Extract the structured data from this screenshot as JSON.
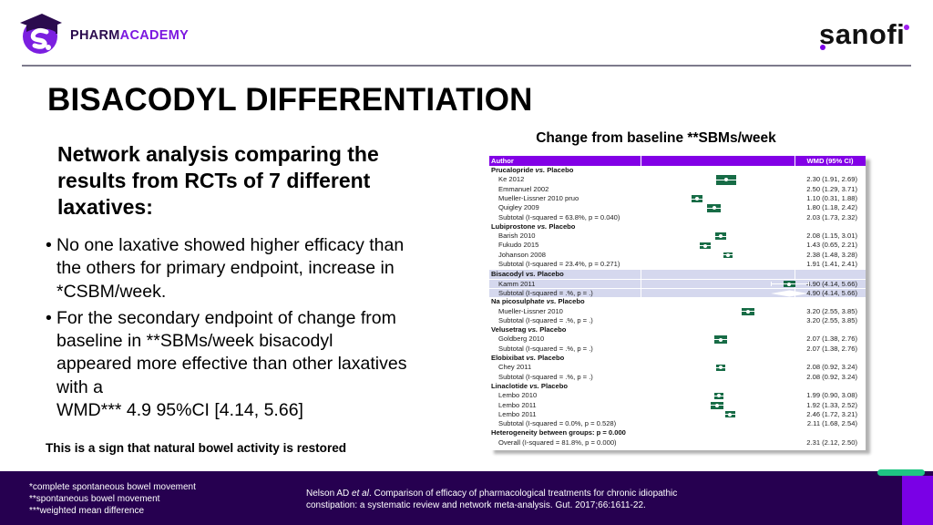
{
  "brand": {
    "logo_text_part1": "PHARM",
    "logo_text_part2": "ACADEMY",
    "logo_icon": "graduation-cap-s-icon",
    "partner_logo_text": "sanofi"
  },
  "slide": {
    "title": "BISACODYL DIFFERENTIATION",
    "intro_lines": [
      "Network analysis comparing the",
      "results from RCTs of 7 different",
      "laxatives:"
    ],
    "bullets": [
      {
        "lines": [
          "No one laxative showed higher efficacy than",
          "the others for primary endpoint, increase in",
          "*CSBM/week."
        ]
      },
      {
        "lines": [
          "For the secondary endpoint of change from",
          "baseline in **SBMs/week bisacodyl",
          "appeared more effective than other laxatives",
          "with a",
          "WMD*** 4.9 95%CI [4.14, 5.66]"
        ]
      }
    ],
    "bullet_glyph": "•",
    "conclusion": "This is a sign that natural bowel activity is restored"
  },
  "chart_title": "Change from baseline **SBMs/week",
  "footer": {
    "footnotes": [
      "*complete spontaneous bowel movement",
      "**spontaneous bowel movement",
      "***weighted mean difference"
    ],
    "citation": {
      "author": "Nelson AD ",
      "etal": "et al",
      "line1_rest": ". Comparison of efficacy of pharmacological treatments for chronic idiopathic",
      "line2": "constipation: a systematic review and network meta-analysis. Gut. 2017;66:1611-22."
    }
  },
  "colors": {
    "brand_purple": "#7a00e6",
    "dark_purple": "#260050",
    "accent_green": "#1fc583",
    "forest_header": "#8200e6",
    "marker_green": "#176c46",
    "highlight_row": "#d5d8ee"
  },
  "chart_data": {
    "type": "scatter",
    "subtype": "forest",
    "title": "Change from baseline **SBMs/week",
    "columns": [
      "Author",
      "",
      "WMD (95% CI)"
    ],
    "effect_measure": "WMD",
    "highlighted_group": "Bisacodyl",
    "rows": [
      {
        "kind": "group",
        "drug": "Prucalopride",
        "vs": "vs.",
        "comparator": "Placebo"
      },
      {
        "kind": "study",
        "label": "Ke 2012",
        "wmd": 2.3,
        "ci_low": 1.91,
        "ci_high": 2.69,
        "display": "2.30 (1.91, 2.69)",
        "rel_weight": 1.0
      },
      {
        "kind": "study",
        "label": "Emmanuel 2002",
        "wmd": 2.5,
        "ci_low": 1.29,
        "ci_high": 3.71,
        "display": "2.50 (1.29, 3.71)",
        "rel_weight": 0
      },
      {
        "kind": "study",
        "label": "Mueller-Lissner 2010 pruo",
        "wmd": 1.1,
        "ci_low": 0.31,
        "ci_high": 1.88,
        "display": "1.10 (0.31, 1.88)",
        "rel_weight": 0.35
      },
      {
        "kind": "study",
        "label": "Quigley 2009",
        "wmd": 1.8,
        "ci_low": 1.18,
        "ci_high": 2.42,
        "display": "1.80 (1.18, 2.42)",
        "rel_weight": 0.5
      },
      {
        "kind": "subtotal",
        "label": "Subtotal (I-squared = 63.8%, p = 0.040)",
        "wmd": 2.03,
        "ci_low": 1.73,
        "ci_high": 2.32,
        "display": "2.03 (1.73, 2.32)"
      },
      {
        "kind": "group",
        "drug": "Lubiprostone",
        "vs": "vs.",
        "comparator": "Placebo"
      },
      {
        "kind": "study",
        "label": "Barish 2010",
        "wmd": 2.08,
        "ci_low": 1.15,
        "ci_high": 3.01,
        "display": "2.08 (1.15, 3.01)",
        "rel_weight": 0.3
      },
      {
        "kind": "study",
        "label": "Fukudo 2015",
        "wmd": 1.43,
        "ci_low": 0.65,
        "ci_high": 2.21,
        "display": "1.43 (0.65, 2.21)",
        "rel_weight": 0.3
      },
      {
        "kind": "study",
        "label": "Johanson 2008",
        "wmd": 2.38,
        "ci_low": 1.48,
        "ci_high": 3.28,
        "display": "2.38 (1.48, 3.28)",
        "rel_weight": 0.1
      },
      {
        "kind": "subtotal",
        "label": "Subtotal (I-squared = 23.4%, p = 0.271)",
        "wmd": 1.91,
        "ci_low": 1.41,
        "ci_high": 2.41,
        "display": "1.91 (1.41, 2.41)"
      },
      {
        "kind": "group",
        "drug": "Bisacodyl",
        "vs": "vs.",
        "comparator": "Placebo",
        "highlight": true
      },
      {
        "kind": "study",
        "label": "Kamm 2011",
        "wmd": 4.9,
        "ci_low": 4.14,
        "ci_high": 5.66,
        "display": "4.90 (4.14, 5.66)",
        "rel_weight": 0.3,
        "highlight": true
      },
      {
        "kind": "subtotal",
        "label": "Subtotal (I-squared = .%, p = .)",
        "wmd": 4.9,
        "ci_low": 4.14,
        "ci_high": 5.66,
        "display": "4.90 (4.14, 5.66)",
        "highlight": true
      },
      {
        "kind": "group",
        "drug": "Na picosulphate",
        "vs": "vs.",
        "comparator": "Placebo"
      },
      {
        "kind": "study",
        "label": "Mueller-Lissner 2010",
        "wmd": 3.2,
        "ci_low": 2.55,
        "ci_high": 3.85,
        "display": "3.20 (2.55, 3.85)",
        "rel_weight": 0.45
      },
      {
        "kind": "subtotal",
        "label": "Subtotal (I-squared = .%, p = .)",
        "wmd": 3.2,
        "ci_low": 2.55,
        "ci_high": 3.85,
        "display": "3.20 (2.55, 3.85)"
      },
      {
        "kind": "group",
        "drug": "Velusetrag",
        "vs": "vs.",
        "comparator": "Placebo"
      },
      {
        "kind": "study",
        "label": "Goldberg 2010",
        "wmd": 2.07,
        "ci_low": 1.38,
        "ci_high": 2.76,
        "display": "2.07 (1.38, 2.76)",
        "rel_weight": 0.45
      },
      {
        "kind": "subtotal",
        "label": "Subtotal (I-squared = .%, p = .)",
        "wmd": 2.07,
        "ci_low": 1.38,
        "ci_high": 2.76,
        "display": "2.07 (1.38, 2.76)"
      },
      {
        "kind": "group",
        "drug": "Elobixibat",
        "vs": "vs.",
        "comparator": "Placebo"
      },
      {
        "kind": "study",
        "label": "Chey 2011",
        "wmd": 2.08,
        "ci_low": 0.92,
        "ci_high": 3.24,
        "display": "2.08 (0.92, 3.24)",
        "rel_weight": 0.15
      },
      {
        "kind": "subtotal",
        "label": "Subtotal (I-squared = .%, p = .)",
        "wmd": 2.08,
        "ci_low": 0.92,
        "ci_high": 3.24,
        "display": "2.08 (0.92, 3.24)"
      },
      {
        "kind": "group",
        "drug": "Linaclotide",
        "vs": "vs.",
        "comparator": "Placebo"
      },
      {
        "kind": "study",
        "label": "Lembo 2010",
        "wmd": 1.99,
        "ci_low": 0.9,
        "ci_high": 3.08,
        "display": "1.99 (0.90, 3.08)",
        "rel_weight": 0.15
      },
      {
        "kind": "study",
        "label": "Lembo 2011",
        "wmd": 1.92,
        "ci_low": 1.33,
        "ci_high": 2.52,
        "display": "1.92 (1.33, 2.52)",
        "rel_weight": 0.45
      },
      {
        "kind": "study",
        "label": "Lembo 2011",
        "wmd": 2.46,
        "ci_low": 1.72,
        "ci_high": 3.21,
        "display": "2.46 (1.72, 3.21)",
        "rel_weight": 0.2
      },
      {
        "kind": "subtotal",
        "label": "Subtotal (I-squared = 0.0%, p = 0.528)",
        "wmd": 2.11,
        "ci_low": 1.68,
        "ci_high": 2.54,
        "display": "2.11 (1.68, 2.54)"
      },
      {
        "kind": "het",
        "label": "Heterogeneity between groups: p = 0.000"
      },
      {
        "kind": "overall",
        "label": "Overall (I-squared = 81.8%, p = 0.000)",
        "wmd": 2.31,
        "ci_low": 2.12,
        "ci_high": 2.5,
        "display": "2.31 (2.12, 2.50)"
      }
    ]
  }
}
